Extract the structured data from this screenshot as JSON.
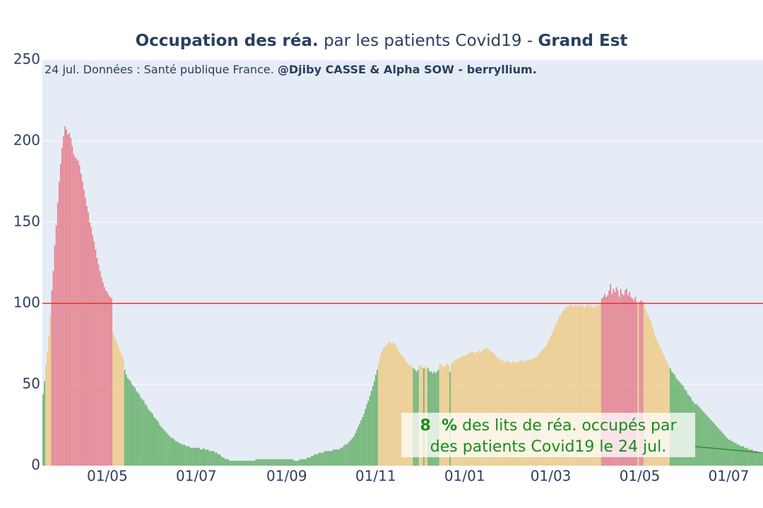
{
  "chart_data": {
    "type": "bar",
    "title": [
      "Occupation des réa.",
      " par les patients Covid19 - ",
      "Grand Est"
    ],
    "subtitle": [
      "24 jul. Données : Santé publique France. ",
      "@Djiby CASSE & Alpha SOW - berryllium."
    ],
    "annotation": {
      "value_label": "8  %",
      "lines": [
        "des lits de réa. occupés par",
        "des patients Covid19 le 24 jul."
      ],
      "color": "#1a8c1a"
    },
    "reference_line": {
      "y": 100,
      "color": "#e8312f"
    },
    "color_thresholds": [
      60,
      100
    ],
    "colors": [
      "#3d9e3d",
      "#f2bf60",
      "#e55a69"
    ],
    "categories": [
      null,
      null,
      null,
      null,
      null,
      null,
      null,
      null,
      null,
      null,
      null,
      null,
      null,
      null,
      null,
      null,
      null,
      null,
      null,
      null,
      null,
      null,
      null,
      null,
      null,
      null,
      null,
      null,
      null,
      null,
      null,
      null,
      null,
      null,
      null,
      null,
      null,
      null,
      null,
      null,
      null,
      null,
      null,
      null,
      "01/05",
      null,
      null,
      null,
      null,
      null,
      null,
      null,
      null,
      null,
      null,
      null,
      null,
      null,
      null,
      null,
      null,
      null,
      null,
      null,
      null,
      null,
      null,
      null,
      null,
      null,
      null,
      null,
      null,
      null,
      null,
      null,
      null,
      null,
      null,
      null,
      null,
      null,
      null,
      null,
      null,
      null,
      null,
      null,
      null,
      null,
      null,
      null,
      null,
      null,
      null,
      null,
      null,
      null,
      null,
      null,
      null,
      null,
      null,
      null,
      null,
      "01/07",
      null,
      null,
      null,
      null,
      null,
      null,
      null,
      null,
      null,
      null,
      null,
      null,
      null,
      null,
      null,
      null,
      null,
      null,
      null,
      null,
      null,
      null,
      null,
      null,
      null,
      null,
      null,
      null,
      null,
      null,
      null,
      null,
      null,
      null,
      null,
      null,
      null,
      null,
      null,
      null,
      null,
      null,
      null,
      null,
      null,
      null,
      null,
      null,
      null,
      null,
      null,
      null,
      null,
      null,
      null,
      null,
      null,
      null,
      null,
      null,
      null,
      "01/09",
      null,
      null,
      null,
      null,
      null,
      null,
      null,
      null,
      null,
      null,
      null,
      null,
      null,
      null,
      null,
      null,
      null,
      null,
      null,
      null,
      null,
      null,
      null,
      null,
      null,
      null,
      null,
      null,
      null,
      null,
      null,
      null,
      null,
      null,
      null,
      null,
      null,
      null,
      null,
      null,
      null,
      null,
      null,
      null,
      null,
      null,
      null,
      null,
      null,
      null,
      null,
      null,
      null,
      null,
      null,
      null,
      null,
      null,
      null,
      null,
      "01/11",
      null,
      null,
      null,
      null,
      null,
      null,
      null,
      null,
      null,
      null,
      null,
      null,
      null,
      null,
      null,
      null,
      null,
      null,
      null,
      null,
      null,
      null,
      null,
      null,
      null,
      null,
      null,
      null,
      null,
      null,
      null,
      null,
      null,
      null,
      null,
      null,
      null,
      null,
      null,
      null,
      null,
      null,
      null,
      null,
      null,
      null,
      null,
      null,
      null,
      null,
      null,
      null,
      null,
      null,
      null,
      null,
      null,
      null,
      null,
      null,
      "01/01",
      null,
      null,
      null,
      null,
      null,
      null,
      null,
      null,
      null,
      null,
      null,
      null,
      null,
      null,
      null,
      null,
      null,
      null,
      null,
      null,
      null,
      null,
      null,
      null,
      null,
      null,
      null,
      null,
      null,
      null,
      null,
      null,
      null,
      null,
      null,
      null,
      null,
      null,
      null,
      null,
      null,
      null,
      null,
      null,
      null,
      null,
      null,
      null,
      null,
      null,
      null,
      null,
      null,
      null,
      null,
      null,
      null,
      null,
      "01/03",
      null,
      null,
      null,
      null,
      null,
      null,
      null,
      null,
      null,
      null,
      null,
      null,
      null,
      null,
      null,
      null,
      null,
      null,
      null,
      null,
      null,
      null,
      null,
      null,
      null,
      null,
      null,
      null,
      null,
      null,
      null,
      null,
      null,
      null,
      null,
      null,
      null,
      null,
      null,
      null,
      null,
      null,
      null,
      null,
      null,
      null,
      null,
      null,
      null,
      null,
      null,
      null,
      null,
      null,
      null,
      null,
      null,
      null,
      null,
      null,
      "01/05",
      null,
      null,
      null,
      null,
      null,
      null,
      null,
      null,
      null,
      null,
      null,
      null,
      null,
      null,
      null,
      null,
      null,
      null,
      null,
      null,
      null,
      null,
      null,
      null,
      null,
      null,
      null,
      null,
      null,
      null,
      null,
      null,
      null,
      null,
      null,
      null,
      null,
      null,
      null,
      null,
      null,
      null,
      null,
      null,
      null,
      null,
      null,
      null,
      null,
      null,
      null,
      null,
      null,
      null,
      null,
      null,
      null,
      null,
      null,
      null,
      "01/07",
      null,
      null,
      null,
      null,
      null,
      null,
      null,
      null,
      null,
      null,
      null,
      null,
      null,
      null,
      null,
      null,
      null,
      null,
      null,
      null,
      null,
      null,
      null
    ],
    "values": [
      44,
      52,
      62,
      70,
      80,
      93,
      108,
      120,
      136,
      148,
      162,
      175,
      186,
      196,
      203,
      209,
      207,
      204,
      205,
      202,
      197,
      192,
      190,
      189,
      188,
      185,
      180,
      175,
      170,
      165,
      160,
      156,
      150,
      147,
      142,
      138,
      133,
      128,
      124,
      120,
      116,
      113,
      110,
      108,
      107,
      105,
      104,
      103,
      82,
      79,
      77,
      75,
      72,
      70,
      68,
      66,
      59,
      56,
      54,
      53,
      52,
      50,
      49,
      48,
      46,
      45,
      44,
      42,
      41,
      40,
      38,
      37,
      35,
      34,
      33,
      32,
      30,
      29,
      28,
      27,
      25,
      24,
      23,
      22,
      21,
      20,
      19,
      18,
      17,
      17,
      16,
      15,
      15,
      14,
      14,
      13,
      13,
      13,
      12,
      12,
      12,
      11,
      11,
      11,
      11,
      11,
      11,
      11,
      10,
      10,
      11,
      10,
      10,
      10,
      9,
      9,
      9,
      9,
      8,
      8,
      7,
      7,
      6,
      5,
      5,
      4,
      4,
      4,
      3,
      3,
      3,
      3,
      3,
      3,
      3,
      3,
      3,
      3,
      3,
      3,
      3,
      3,
      3,
      3,
      3,
      3,
      4,
      4,
      4,
      4,
      4,
      4,
      4,
      4,
      4,
      4,
      4,
      4,
      4,
      4,
      4,
      4,
      4,
      4,
      4,
      4,
      4,
      4,
      4,
      4,
      4,
      4,
      3,
      3,
      3,
      3,
      4,
      4,
      4,
      4,
      4,
      5,
      5,
      5,
      6,
      6,
      7,
      7,
      7,
      8,
      8,
      8,
      8,
      9,
      9,
      9,
      9,
      9,
      9,
      10,
      10,
      10,
      10,
      10,
      11,
      11,
      12,
      13,
      13,
      14,
      15,
      16,
      17,
      18,
      20,
      22,
      24,
      26,
      28,
      30,
      32,
      35,
      38,
      40,
      43,
      46,
      49,
      52,
      56,
      59,
      63,
      67,
      70,
      72,
      73,
      74,
      75,
      76,
      76,
      75,
      76,
      75,
      74,
      72,
      70,
      69,
      68,
      67,
      66,
      64,
      63,
      62,
      62,
      61,
      60,
      59,
      58,
      59,
      62,
      61,
      61,
      60,
      61,
      61,
      60,
      58,
      58,
      57,
      58,
      57,
      58,
      59,
      63,
      62,
      61,
      61,
      62,
      63,
      62,
      58,
      63,
      64,
      65,
      65,
      66,
      66,
      67,
      67,
      68,
      68,
      68,
      69,
      69,
      70,
      70,
      70,
      69,
      70,
      70,
      71,
      70,
      71,
      72,
      72,
      73,
      72,
      71,
      70,
      70,
      69,
      68,
      67,
      66,
      66,
      65,
      65,
      64,
      64,
      65,
      64,
      64,
      63,
      64,
      64,
      63,
      64,
      64,
      65,
      65,
      64,
      65,
      64,
      65,
      65,
      66,
      65,
      66,
      67,
      66,
      68,
      69,
      70,
      71,
      72,
      73,
      74,
      76,
      78,
      80,
      82,
      84,
      86,
      88,
      90,
      92,
      93,
      95,
      96,
      97,
      98,
      98,
      99,
      99,
      98,
      99,
      99,
      98,
      99,
      99,
      98,
      99,
      97,
      98,
      99,
      99,
      98,
      99,
      97,
      98,
      99,
      98,
      99,
      100,
      103,
      104,
      106,
      104,
      105,
      108,
      112,
      106,
      109,
      107,
      110,
      108,
      104,
      109,
      106,
      105,
      108,
      109,
      105,
      107,
      104,
      103,
      102,
      104,
      101,
      100,
      101,
      102,
      101,
      99,
      96,
      94,
      92,
      90,
      88,
      85,
      82,
      79,
      77,
      75,
      73,
      71,
      69,
      67,
      65,
      63,
      61,
      60,
      58,
      57,
      56,
      54,
      53,
      52,
      51,
      50,
      49,
      47,
      46,
      44,
      43,
      42,
      40,
      39,
      38,
      38,
      37,
      36,
      35,
      34,
      33,
      32,
      31,
      30,
      29,
      28,
      27,
      26,
      25,
      24,
      23,
      22,
      21,
      20,
      19,
      18,
      17,
      16,
      16,
      15,
      15,
      14,
      14,
      13,
      13,
      12,
      12,
      12,
      11,
      11,
      11,
      10,
      10,
      10,
      9,
      9,
      9,
      8,
      8,
      8,
      8
    ],
    "ylim": [
      0,
      250
    ],
    "yticks": [
      0,
      50,
      100,
      150,
      200,
      250
    ],
    "grid": true
  }
}
